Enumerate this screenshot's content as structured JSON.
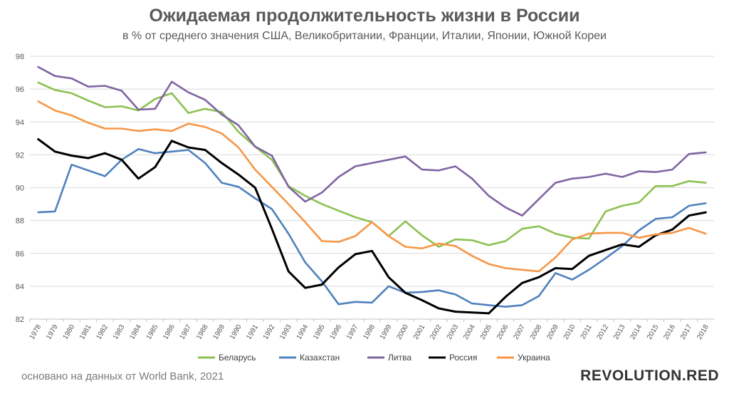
{
  "header": {
    "title": "Ожидаемая продолжительность жизни в России",
    "subtitle": "в % от среднего значения США, Великобритании, Франции, Италии, Японии, Южной Кореи"
  },
  "footer": {
    "source": "основано на данных от World Bank, 2021",
    "brand": "REVOLUTION.RED"
  },
  "chart_data": {
    "type": "line",
    "title": "Ожидаемая продолжительность жизни в России",
    "subtitle": "в % от среднего значения США, Великобритании, Франции, Италии, Японии, Южной Кореи",
    "xlabel": "",
    "ylabel": "",
    "ylim": [
      82,
      98
    ],
    "yticks": [
      82,
      84,
      86,
      88,
      90,
      92,
      94,
      96,
      98
    ],
    "grid": true,
    "legend_position": "bottom",
    "x": [
      "1978",
      "1979",
      "1980",
      "1981",
      "1982",
      "1983",
      "1984",
      "1985",
      "1986",
      "1987",
      "1988",
      "1989",
      "1990",
      "1991",
      "1992",
      "1993",
      "1994",
      "1995",
      "1996",
      "1997",
      "1998",
      "1999",
      "2000",
      "2001",
      "2002",
      "2003",
      "2004",
      "2005",
      "2006",
      "2007",
      "2008",
      "2009",
      "2010",
      "2011",
      "2012",
      "2013",
      "2014",
      "2015",
      "2016",
      "2017",
      "2018"
    ],
    "series": [
      {
        "name": "Беларусь",
        "color": "#8cc152",
        "values": [
          96.4,
          95.95,
          95.75,
          95.3,
          94.9,
          94.95,
          94.7,
          95.4,
          95.75,
          94.55,
          94.8,
          94.6,
          93.4,
          92.5,
          91.7,
          90.1,
          89.5,
          89.0,
          88.6,
          88.2,
          87.9,
          87.05,
          87.95,
          87.1,
          86.4,
          86.85,
          86.8,
          86.5,
          86.75,
          87.5,
          87.65,
          87.2,
          86.95,
          86.9,
          88.55,
          88.9,
          89.1,
          90.1,
          90.1,
          90.4,
          90.3
        ]
      },
      {
        "name": "Казахстан",
        "color": "#4f81bd",
        "values": [
          88.5,
          88.55,
          91.4,
          91.05,
          90.7,
          91.7,
          92.35,
          92.1,
          92.2,
          92.3,
          91.5,
          90.3,
          90.05,
          89.35,
          88.7,
          87.2,
          85.45,
          84.3,
          82.9,
          83.05,
          83.0,
          84.0,
          83.6,
          83.65,
          83.75,
          83.5,
          82.95,
          82.85,
          82.75,
          82.85,
          83.4,
          84.8,
          84.4,
          85.0,
          85.7,
          86.45,
          87.4,
          88.1,
          88.2,
          88.9,
          89.05
        ]
      },
      {
        "name": "Литва",
        "color": "#8064a2",
        "values": [
          97.35,
          96.8,
          96.65,
          96.15,
          96.2,
          95.9,
          94.75,
          94.8,
          96.45,
          95.8,
          95.35,
          94.45,
          93.8,
          92.5,
          91.95,
          90.05,
          89.15,
          89.7,
          90.65,
          91.3,
          91.5,
          91.7,
          91.9,
          91.1,
          91.05,
          91.3,
          90.55,
          89.5,
          88.8,
          88.3,
          89.3,
          90.3,
          90.55,
          90.65,
          90.85,
          90.65,
          91.0,
          90.95,
          91.1,
          92.05,
          92.15
        ]
      },
      {
        "name": "Россия",
        "color": "#000000",
        "values": [
          92.95,
          92.2,
          91.95,
          91.8,
          92.1,
          91.7,
          90.55,
          91.25,
          92.85,
          92.45,
          92.3,
          91.5,
          90.8,
          90.0,
          87.5,
          84.9,
          83.9,
          84.1,
          85.15,
          85.95,
          86.15,
          84.55,
          83.6,
          83.15,
          82.65,
          82.45,
          82.4,
          82.35,
          83.35,
          84.2,
          84.55,
          85.1,
          85.05,
          85.85,
          86.2,
          86.55,
          86.4,
          87.1,
          87.45,
          88.3,
          88.5
        ]
      },
      {
        "name": "Украина",
        "color": "#f79646",
        "values": [
          95.25,
          94.7,
          94.4,
          93.95,
          93.6,
          93.6,
          93.45,
          93.55,
          93.45,
          93.9,
          93.7,
          93.3,
          92.45,
          91.1,
          90.05,
          89.0,
          87.9,
          86.75,
          86.7,
          87.05,
          87.9,
          87.05,
          86.4,
          86.3,
          86.6,
          86.45,
          85.85,
          85.35,
          85.1,
          85.0,
          84.9,
          85.75,
          86.85,
          87.2,
          87.25,
          87.25,
          86.95,
          87.15,
          87.25,
          87.55,
          87.2
        ]
      }
    ]
  }
}
